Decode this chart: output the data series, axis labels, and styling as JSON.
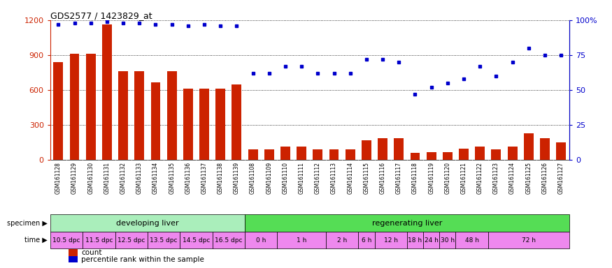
{
  "title": "GDS2577 / 1423829_at",
  "gsm_labels": [
    "GSM161128",
    "GSM161129",
    "GSM161130",
    "GSM161131",
    "GSM161132",
    "GSM161133",
    "GSM161134",
    "GSM161135",
    "GSM161136",
    "GSM161137",
    "GSM161138",
    "GSM161139",
    "GSM161108",
    "GSM161109",
    "GSM161110",
    "GSM161111",
    "GSM161112",
    "GSM161113",
    "GSM161114",
    "GSM161115",
    "GSM161116",
    "GSM161117",
    "GSM161118",
    "GSM161119",
    "GSM161120",
    "GSM161121",
    "GSM161122",
    "GSM161123",
    "GSM161124",
    "GSM161125",
    "GSM161126",
    "GSM161127"
  ],
  "bar_values": [
    840,
    910,
    910,
    1160,
    760,
    760,
    665,
    760,
    615,
    615,
    615,
    650,
    90,
    90,
    115,
    115,
    90,
    90,
    90,
    170,
    185,
    185,
    60,
    65,
    65,
    100,
    115,
    90,
    115,
    230,
    185,
    150
  ],
  "dot_values_pct": [
    97,
    98,
    98,
    99,
    98,
    98,
    97,
    97,
    96,
    97,
    96,
    96,
    62,
    62,
    67,
    67,
    62,
    62,
    62,
    72,
    72,
    70,
    47,
    52,
    55,
    58,
    67,
    60,
    70,
    80,
    75,
    75
  ],
  "bar_color": "#cc2200",
  "dot_color": "#0000cc",
  "ylim_left": [
    0,
    1200
  ],
  "ylim_right": [
    0,
    100
  ],
  "yticks_left": [
    0,
    300,
    600,
    900,
    1200
  ],
  "ytick_labels_left": [
    "0",
    "300",
    "600",
    "900",
    "1200"
  ],
  "yticks_right": [
    0,
    25,
    50,
    75,
    100
  ],
  "ytick_labels_right": [
    "0",
    "25",
    "50",
    "75",
    "100%"
  ],
  "specimen_labels": [
    "developing liver",
    "regenerating liver"
  ],
  "specimen_dev_color": "#aaeebb",
  "specimen_reg_color": "#55dd55",
  "time_color_dpc": "#ee88ee",
  "time_color_h": "#ee88ee",
  "plot_bg": "#ffffff",
  "xticklabel_bg": "#cccccc",
  "time_groups": [
    [
      0,
      2,
      "10.5 dpc"
    ],
    [
      2,
      4,
      "11.5 dpc"
    ],
    [
      4,
      6,
      "12.5 dpc"
    ],
    [
      6,
      8,
      "13.5 dpc"
    ],
    [
      8,
      10,
      "14.5 dpc"
    ],
    [
      10,
      12,
      "16.5 dpc"
    ],
    [
      12,
      14,
      "0 h"
    ],
    [
      14,
      17,
      "1 h"
    ],
    [
      17,
      19,
      "2 h"
    ],
    [
      19,
      20,
      "6 h"
    ],
    [
      20,
      22,
      "12 h"
    ],
    [
      22,
      23,
      "18 h"
    ],
    [
      23,
      24,
      "24 h"
    ],
    [
      24,
      25,
      "30 h"
    ],
    [
      25,
      27,
      "48 h"
    ],
    [
      27,
      32,
      "72 h"
    ]
  ]
}
